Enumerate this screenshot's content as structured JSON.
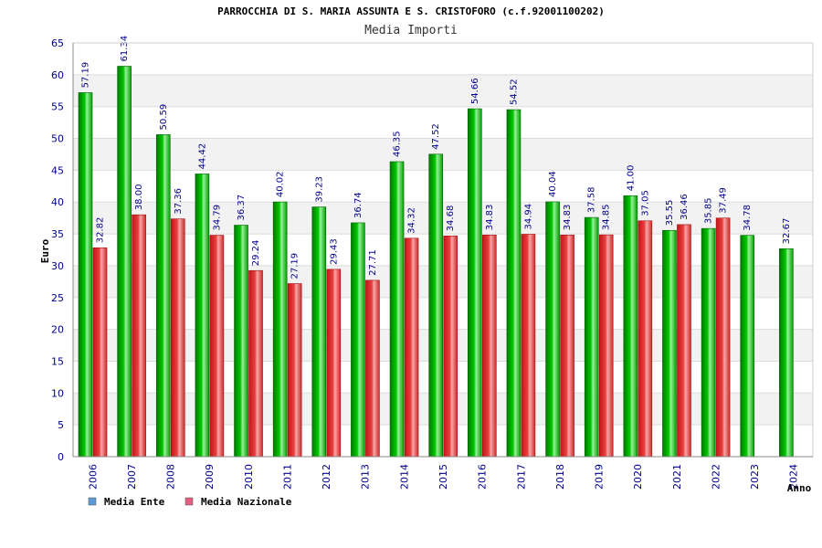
{
  "chart_data": {
    "type": "bar",
    "title": "PARROCCHIA DI S. MARIA ASSUNTA E S. CRISTOFORO (c.f.92001100202)",
    "subtitle": "Media Importi",
    "xlabel": "Anno",
    "ylabel": "Euro",
    "ylim": [
      0,
      65
    ],
    "yticks": [
      "0",
      "5",
      "10",
      "15",
      "20",
      "25",
      "30",
      "35",
      "40",
      "45",
      "50",
      "55",
      "60",
      "65"
    ],
    "grid": true,
    "legend_position": "bottom-left",
    "categories": [
      "2006",
      "2007",
      "2008",
      "2009",
      "2010",
      "2011",
      "2012",
      "2013",
      "2014",
      "2015",
      "2016",
      "2017",
      "2018",
      "2019",
      "2020",
      "2021",
      "2022",
      "2023",
      "2024"
    ],
    "series": [
      {
        "name": "Media Ente",
        "legend_color": "#5b9bd5",
        "bar_color": "#00b000",
        "values": [
          57.19,
          61.34,
          50.59,
          44.42,
          36.37,
          40.02,
          39.23,
          36.74,
          46.35,
          47.52,
          54.66,
          54.52,
          40.04,
          37.58,
          41.0,
          35.55,
          35.85,
          34.78,
          32.67
        ],
        "labels": [
          "57.19",
          "61.34",
          "50.59",
          "44.42",
          "36.37",
          "40.02",
          "39.23",
          "36.74",
          "46.35",
          "47.52",
          "54.66",
          "54.52",
          "40.04",
          "37.58",
          "41.00",
          "35.55",
          "35.85",
          "34.78",
          "32.67"
        ]
      },
      {
        "name": "Media Nazionale",
        "legend_color": "#e06080",
        "bar_color": "#e03030",
        "values": [
          32.82,
          38.0,
          37.36,
          34.79,
          29.24,
          27.19,
          29.43,
          27.71,
          34.32,
          34.68,
          34.83,
          34.94,
          34.83,
          34.85,
          37.05,
          36.46,
          37.49,
          null,
          null
        ],
        "labels": [
          "32.82",
          "38.00",
          "37.36",
          "34.79",
          "29.24",
          "27.19",
          "29.43",
          "27.71",
          "34.32",
          "34.68",
          "34.83",
          "34.94",
          "34.83",
          "34.85",
          "37.05",
          "36.46",
          "37.49",
          null,
          null
        ]
      }
    ]
  }
}
